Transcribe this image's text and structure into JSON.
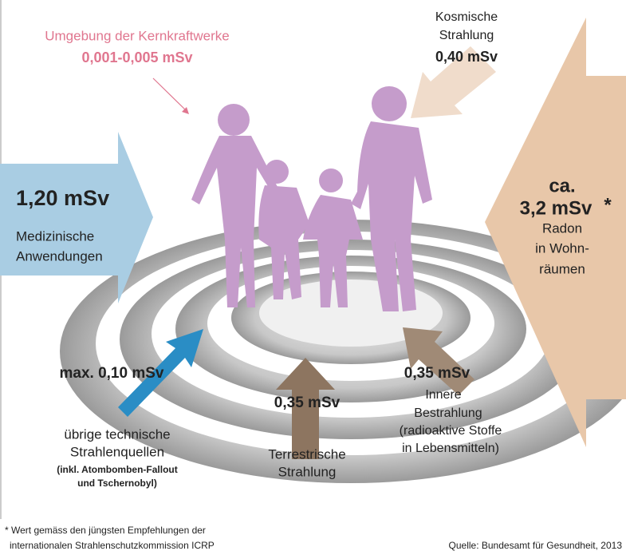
{
  "power_plants": {
    "label": "Umgebung der Kernkraftwerke",
    "value": "0,001-0,005 mSv"
  },
  "cosmic": {
    "label": [
      "Kosmische",
      "Strahlung"
    ],
    "value": "0,40 mSv"
  },
  "medical": {
    "value": "1,20 mSv",
    "label": [
      "Medizinische",
      "Anwendungen"
    ]
  },
  "radon": {
    "prefix": "ca.",
    "value": "3,2 mSv",
    "mark": "*",
    "label": [
      "Radon",
      "in Wohn-",
      "räumen"
    ]
  },
  "technical": {
    "value": "max. 0,10 mSv",
    "label": [
      "übrige technische",
      "Strahlenquellen"
    ],
    "note": [
      "(inkl. Atombomben-Fallout",
      "und Tschernobyl)"
    ]
  },
  "terrestrial": {
    "value": "0,35 mSv",
    "label": [
      "Terrestrische",
      "Strahlung"
    ]
  },
  "internal": {
    "value": "0,35 mSv",
    "label": [
      "Innere",
      "Bestrahlung",
      "(radioaktive Stoffe",
      "in Lebensmitteln)"
    ]
  },
  "footnote": [
    "* Wert gemäss den jüngsten Empfehlungen der",
    "internationalen Strahlenschutzkommission ICRP"
  ],
  "source": "Quelle: Bundesamt für Gesundheit, 2013"
}
